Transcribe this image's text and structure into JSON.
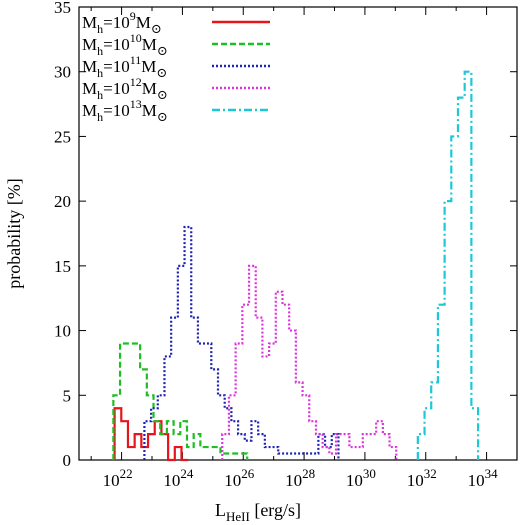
{
  "chart_data": {
    "type": "histogram-step",
    "title": "",
    "xlabel": "L",
    "xlabel_sub": "HeII",
    "xlabel_unit": " [erg/s]",
    "ylabel": "probability [%]",
    "x_scale": "log10",
    "xlim_log10": [
      20.6,
      35.0
    ],
    "ylim": [
      0,
      35
    ],
    "x_ticks": [
      {
        "exp": 22,
        "base": "10",
        "sup": "22"
      },
      {
        "exp": 24,
        "base": "10",
        "sup": "24"
      },
      {
        "exp": 26,
        "base": "10",
        "sup": "26"
      },
      {
        "exp": 28,
        "base": "10",
        "sup": "28"
      },
      {
        "exp": 30,
        "base": "10",
        "sup": "30"
      },
      {
        "exp": 32,
        "base": "10",
        "sup": "32"
      },
      {
        "exp": 34,
        "base": "10",
        "sup": "34"
      }
    ],
    "y_ticks": [
      "0",
      "5",
      "10",
      "15",
      "20",
      "25",
      "30",
      "35"
    ],
    "grid": false,
    "legend_position": "top-left",
    "series": [
      {
        "label_parts": {
          "M": "M",
          "sub": "h",
          "eq": "=10",
          "sup": "9",
          "sun": "M",
          "sun_sub": "⊙"
        },
        "color": "#e8141c",
        "dash": "",
        "edges": [
          21.77,
          21.99,
          22.21,
          22.43,
          22.65,
          22.87,
          23.09,
          23.31,
          23.53,
          23.75,
          23.97,
          24.19
        ],
        "values": [
          4,
          3,
          1,
          2,
          1,
          2,
          3,
          2,
          0,
          1,
          0
        ]
      },
      {
        "label_parts": {
          "M": "M",
          "sub": "h",
          "eq": "=10",
          "sup": "10",
          "sun": "M",
          "sun_sub": "⊙"
        },
        "color": "#1fbf24",
        "dash": "6,3",
        "edges": [
          21.73,
          21.95,
          22.17,
          22.39,
          22.61,
          22.83,
          23.05,
          23.27,
          23.49,
          23.71,
          23.93,
          24.15,
          24.37,
          24.59,
          24.81,
          25.03,
          25.25,
          25.47,
          25.69,
          25.91,
          26.13
        ],
        "values": [
          5,
          9,
          9,
          9,
          7,
          5,
          3,
          2,
          3,
          2,
          3,
          1,
          2,
          1,
          1,
          1,
          0.5,
          0.5,
          0.5,
          0.5
        ]
      },
      {
        "label_parts": {
          "M": "M",
          "sub": "h",
          "eq": "=10",
          "sup": "11",
          "sun": "M",
          "sun_sub": "⊙"
        },
        "color": "#1c22b4",
        "dash": "2,2",
        "edges": [
          22.75,
          22.97,
          23.19,
          23.41,
          23.63,
          23.85,
          24.07,
          24.29,
          24.51,
          24.73,
          24.95,
          25.17,
          25.39,
          25.61,
          25.83,
          26.05,
          26.27,
          26.49,
          26.71,
          26.93,
          27.15,
          27.37,
          27.59,
          27.81,
          28.03,
          28.25,
          28.47,
          28.69,
          28.91,
          29.13
        ],
        "values": [
          3,
          4,
          5,
          8,
          11,
          15,
          18,
          11,
          9,
          9,
          7,
          5,
          4,
          3,
          2,
          1.5,
          3,
          2,
          1,
          1,
          0.5,
          0.5,
          0.5,
          0.5,
          0.5,
          0.5,
          2,
          1,
          2
        ]
      },
      {
        "label_parts": {
          "M": "M",
          "sub": "h",
          "eq": "=10",
          "sup": "12",
          "sun": "M",
          "sun_sub": "⊙"
        },
        "color": "#dd33dd",
        "dash": "2,2",
        "edges": [
          25.31,
          25.53,
          25.75,
          25.97,
          26.19,
          26.41,
          26.63,
          26.85,
          27.07,
          27.29,
          27.51,
          27.73,
          27.95,
          28.17,
          28.39,
          28.61,
          28.83,
          29.05,
          29.27,
          29.49,
          29.71,
          29.93,
          30.15,
          30.37,
          30.59,
          30.81,
          31.03
        ],
        "values": [
          2,
          5,
          9,
          12,
          15,
          11,
          8,
          9,
          13,
          12,
          10,
          6,
          5,
          3,
          2,
          1,
          0.5,
          2,
          2,
          1,
          1,
          2,
          2,
          3,
          2,
          1
        ]
      },
      {
        "label_parts": {
          "M": "M",
          "sub": "h",
          "eq": "=10",
          "sup": "13",
          "sun": "M",
          "sun_sub": "⊙"
        },
        "color": "#1cc8d8",
        "dash": "8,3,2,3",
        "edges": [
          31.74,
          31.96,
          32.18,
          32.4,
          32.62,
          32.84,
          33.06,
          33.28,
          33.5,
          33.72
        ],
        "values": [
          2,
          4,
          6,
          12,
          20,
          25,
          28,
          30,
          4
        ]
      }
    ]
  }
}
